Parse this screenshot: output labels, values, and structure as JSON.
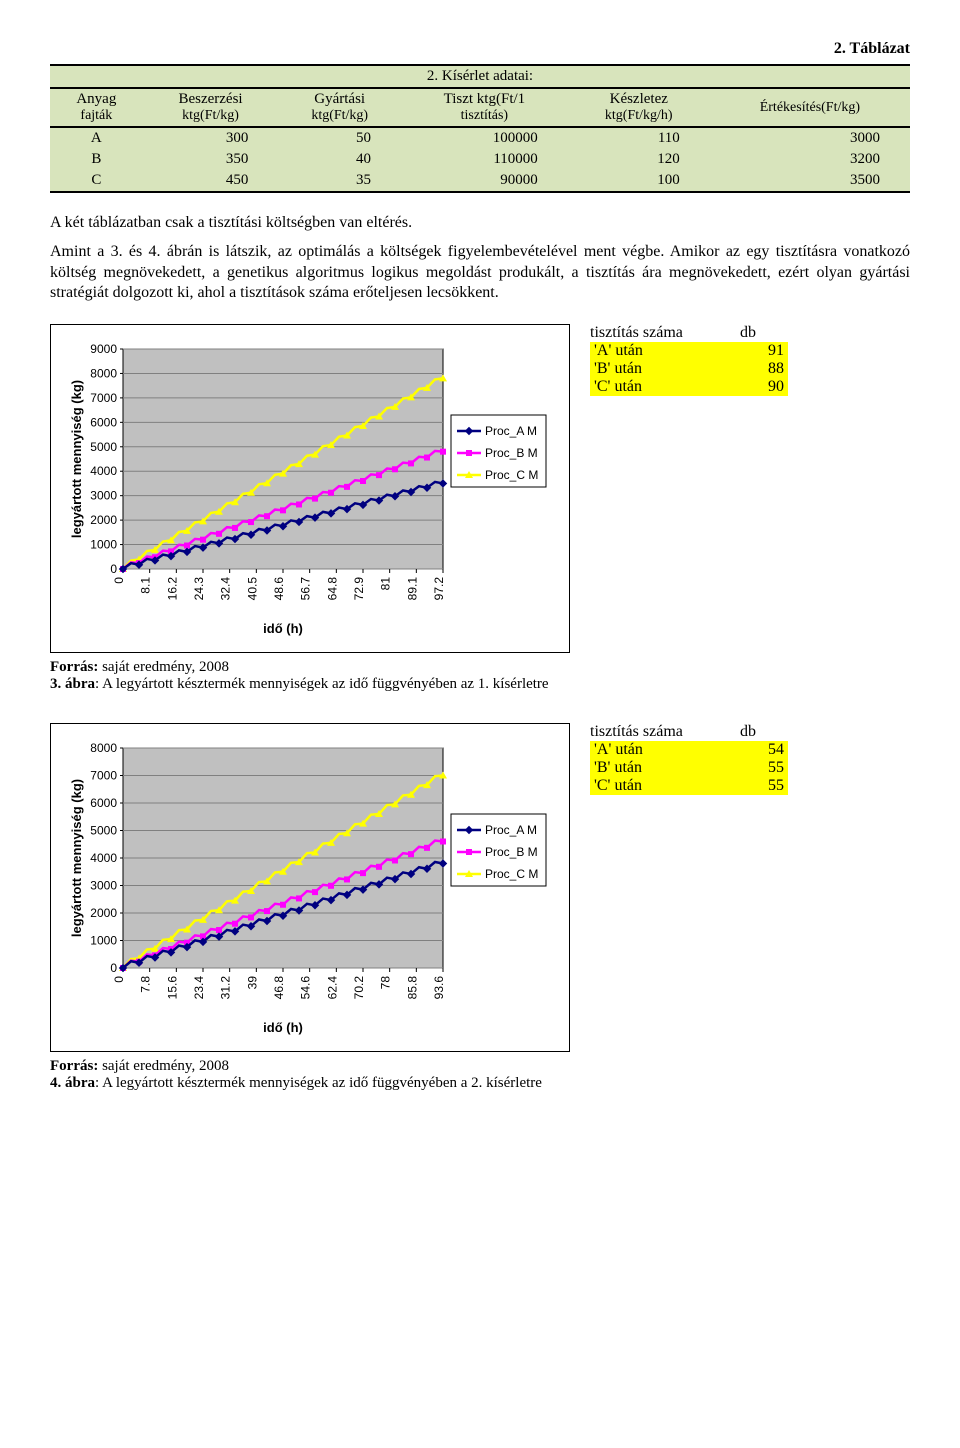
{
  "tableLabel": "2. Táblázat",
  "table": {
    "title": "2. Kísérlet adatai:",
    "headers": [
      {
        "top": "Anyag",
        "bottom": "fajták"
      },
      {
        "top": "Beszerzési",
        "bottom": "ktg(Ft/kg)"
      },
      {
        "top": "Gyártási",
        "bottom": "ktg(Ft/kg)"
      },
      {
        "top": "Tiszt ktg(Ft/1",
        "bottom": "tisztítás)"
      },
      {
        "top": "Készletez",
        "bottom": "ktg(Ft/kg/h)"
      },
      {
        "top": "",
        "bottom": "Értékesítés(Ft/kg)"
      }
    ],
    "rows": [
      [
        "A",
        "300",
        "50",
        "100000",
        "110",
        "3000"
      ],
      [
        "B",
        "350",
        "40",
        "110000",
        "120",
        "3200"
      ],
      [
        "C",
        "450",
        "35",
        "90000",
        "100",
        "3500"
      ]
    ],
    "bg": "#d8e4bc"
  },
  "paragraph1": "A két táblázatban csak a tisztítási költségben van eltérés.",
  "paragraph2": "Amint a 3. és 4. ábrán is látszik, az optimálás a költségek figyelembevételével ment végbe. Amikor az egy tisztításra vonatkozó költség megnövekedett, a genetikus algoritmus logikus megoldást produkált, a tisztítás ára megnövekedett, ezért olyan gyártási stratégiát dolgozott ki, ahol a tisztítások száma erőteljesen lecsökkent.",
  "chart1": {
    "ylabel": "legyártott mennyiség (kg)",
    "xlabel": "idő (h)",
    "ylim": [
      0,
      9000
    ],
    "ytick_step": 1000,
    "xticks": [
      "0",
      "8.1",
      "16.2",
      "24.3",
      "32.4",
      "40.5",
      "48.6",
      "56.7",
      "64.8",
      "72.9",
      "81",
      "89.1",
      "97.2"
    ],
    "plot_bg": "#c0c0c0",
    "grid_color": "#808080",
    "series": {
      "Proc_A": {
        "color": "#000080",
        "marker": "diamond",
        "end": 3500
      },
      "Proc_B": {
        "color": "#ff00ff",
        "marker": "square",
        "end": 4800
      },
      "Proc_C": {
        "color": "#ffff00",
        "marker": "triangle",
        "end": 7800
      }
    },
    "legend": [
      "Proc_A M",
      "Proc_B M",
      "Proc_C M"
    ]
  },
  "cleaning1": {
    "header": [
      "tisztítás száma",
      "db"
    ],
    "rows": [
      [
        "'A' után",
        "91"
      ],
      [
        "'B' után",
        "88"
      ],
      [
        "'C' után",
        "90"
      ]
    ],
    "row_bg": "#ffff00"
  },
  "caption1_src": "Forrás: saját eredmény, 2008",
  "caption1_fig": "3. ábra: A legyártott késztermék mennyiségek az idő függvényében az 1. kísérletre",
  "chart2": {
    "ylabel": "legyártott mennyiség (kg)",
    "xlabel": "idő (h)",
    "ylim": [
      0,
      8000
    ],
    "ytick_step": 1000,
    "xticks": [
      "0",
      "7.8",
      "15.6",
      "23.4",
      "31.2",
      "39",
      "46.8",
      "54.6",
      "62.4",
      "70.2",
      "78",
      "85.8",
      "93.6"
    ],
    "plot_bg": "#c0c0c0",
    "grid_color": "#808080",
    "series": {
      "Proc_A": {
        "color": "#000080",
        "marker": "diamond",
        "end": 3800
      },
      "Proc_B": {
        "color": "#ff00ff",
        "marker": "square",
        "end": 4600
      },
      "Proc_C": {
        "color": "#ffff00",
        "marker": "triangle",
        "end": 7000
      }
    },
    "legend": [
      "Proc_A M",
      "Proc_B M",
      "Proc_C M"
    ]
  },
  "cleaning2": {
    "header": [
      "tisztítás száma",
      "db"
    ],
    "rows": [
      [
        "'A' után",
        "54"
      ],
      [
        "'B' után",
        "55"
      ],
      [
        "'C' után",
        "55"
      ]
    ],
    "row_bg": "#ffff00"
  },
  "caption2_src": "Forrás: saját eredmény, 2008",
  "caption2_fig": "4. ábra: A legyártott késztermék mennyiségek az idő függvényében a 2. kísérletre"
}
